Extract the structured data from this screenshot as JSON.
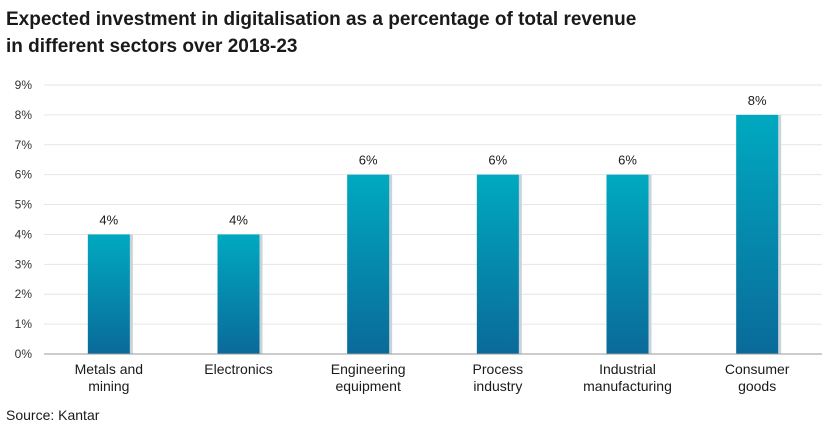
{
  "title_lines": [
    "Expected investment in digitalisation as a percentage of total revenue",
    "in different sectors over 2018-23"
  ],
  "source": "Source: Kantar",
  "colors": {
    "bar_top": "#00A9C0",
    "bar_bottom": "#0A6A9A",
    "bar_shadow": "#C9D3DA",
    "grid": "#E6E6E6",
    "axis": "#9A9A9A"
  },
  "chart_data": {
    "type": "bar",
    "title": "Expected investment in digitalisation as a percentage of total revenue in different sectors over 2018-23",
    "categories": [
      [
        "Metals and",
        "mining"
      ],
      [
        "Electronics"
      ],
      [
        "Engineering",
        "equipment"
      ],
      [
        "Process",
        "industry"
      ],
      [
        "Industrial",
        "manufacturing"
      ],
      [
        "Consumer",
        "goods"
      ]
    ],
    "values": [
      4,
      4,
      6,
      6,
      6,
      8
    ],
    "data_labels": [
      "4%",
      "4%",
      "6%",
      "6%",
      "6%",
      "8%"
    ],
    "ylim": [
      0,
      9
    ],
    "y_ticks": [
      "0%",
      "1%",
      "2%",
      "3%",
      "4%",
      "5%",
      "6%",
      "7%",
      "8%",
      "9%"
    ],
    "xlabel": "",
    "ylabel": "",
    "grid": true
  }
}
